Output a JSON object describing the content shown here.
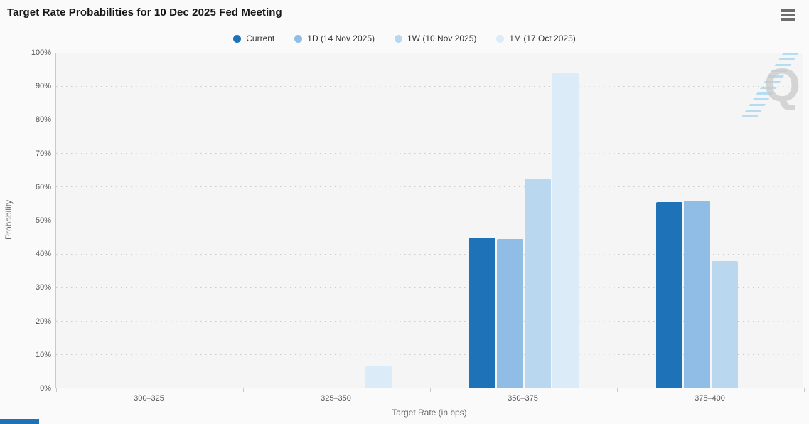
{
  "header": {
    "title": "Target Rate Probabilities for 10 Dec 2025 Fed Meeting"
  },
  "menu": {
    "icon": "hamburger-icon"
  },
  "watermark": {
    "letter": "Q"
  },
  "footer_strip": {
    "color": "#1d72b8"
  },
  "colors": {
    "current": "#1d72b8",
    "one_day": "#8fbde6",
    "one_week": "#b9d8f0",
    "one_month": "#dcebf8",
    "plot_background": "#f5f5f6",
    "page_background": "#fafafa",
    "axis_line": "#c9c9c9"
  },
  "chart_data": {
    "type": "bar",
    "title": "Target Rate Probabilities for 10 Dec 2025 Fed Meeting",
    "xlabel": "Target Rate (in bps)",
    "ylabel": "Probability",
    "ylim": [
      0,
      100
    ],
    "ytick_step": 10,
    "y_tick_labels": [
      "0%",
      "10%",
      "20%",
      "30%",
      "40%",
      "50%",
      "60%",
      "70%",
      "80%",
      "90%",
      "100%"
    ],
    "grid": "dotted-horizontal",
    "legend_position": "top-center",
    "categories": [
      "300–325",
      "325–350",
      "350–375",
      "375–400"
    ],
    "series": [
      {
        "name": "Current",
        "color": "#1d72b8",
        "values": [
          0,
          0,
          44.7,
          55.3
        ]
      },
      {
        "name": "1D (14 Nov 2025)",
        "color": "#8fbde6",
        "values": [
          0,
          0,
          44.2,
          55.8
        ]
      },
      {
        "name": "1W (10 Nov 2025)",
        "color": "#b9d8f0",
        "values": [
          0,
          0,
          62.3,
          37.7
        ]
      },
      {
        "name": "1M (17 Oct 2025)",
        "color": "#dcebf8",
        "values": [
          0,
          6.3,
          93.7,
          0
        ]
      }
    ]
  }
}
